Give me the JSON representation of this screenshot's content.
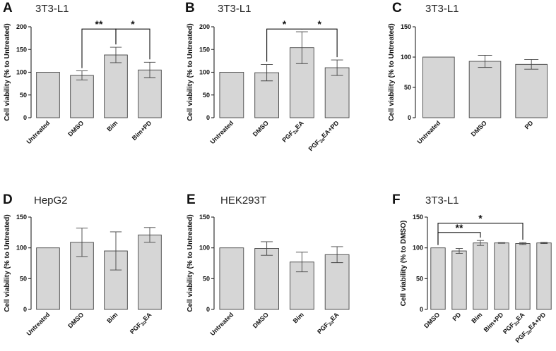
{
  "colors": {
    "bar_fill": "#d6d6d6",
    "bar_stroke": "#444444",
    "axis": "#222222"
  },
  "chart_data": [
    {
      "panel": "A",
      "type": "bar",
      "title": "3T3-L1",
      "ylabel": "Cell viability (% to Untreated)",
      "ylim": [
        0,
        200
      ],
      "yticks": [
        "0",
        "50",
        "100",
        "150",
        "200"
      ],
      "categories": [
        {
          "text": "Untreated"
        },
        {
          "text": "DMSO"
        },
        {
          "text": "Bim"
        },
        {
          "text": "Bim+PD"
        }
      ],
      "values": [
        100,
        93,
        138,
        105
      ],
      "errors": [
        0,
        10,
        17,
        17
      ],
      "annotations": [
        {
          "from": 1,
          "to": 2,
          "label": "**",
          "y": 195
        },
        {
          "from": 2,
          "to": 3,
          "label": "*",
          "y": 195
        }
      ]
    },
    {
      "panel": "B",
      "type": "bar",
      "title": "3T3-L1",
      "ylabel": "Cell viability (% to Untreated)",
      "ylim": [
        0,
        200
      ],
      "yticks": [
        "0",
        "50",
        "100",
        "150",
        "200"
      ],
      "categories": [
        {
          "text": "Untreated"
        },
        {
          "text": "DMSO"
        },
        {
          "text": "PGF",
          "sub": "2α",
          "tail": "EA"
        },
        {
          "text": "PGF",
          "sub": "2α",
          "tail": "EA+PD"
        }
      ],
      "values": [
        100,
        99,
        154,
        110
      ],
      "errors": [
        0,
        18,
        35,
        17
      ],
      "annotations": [
        {
          "from": 1,
          "to": 2,
          "label": "*",
          "y": 195
        },
        {
          "from": 2,
          "to": 3,
          "label": "*",
          "y": 195
        }
      ]
    },
    {
      "panel": "C",
      "type": "bar",
      "title": "3T3-L1",
      "ylabel": "Cell viability (% to Untreated)",
      "ylim": [
        0,
        150
      ],
      "yticks": [
        "0",
        "50",
        "100",
        "150"
      ],
      "categories": [
        {
          "text": "Untreated"
        },
        {
          "text": "DMSO"
        },
        {
          "text": "PD"
        }
      ],
      "values": [
        100,
        93,
        88
      ],
      "errors": [
        0,
        10,
        8
      ],
      "annotations": []
    },
    {
      "panel": "D",
      "type": "bar",
      "title": "HepG2",
      "ylabel": "Cell viability (% to Untreated)",
      "ylim": [
        0,
        150
      ],
      "yticks": [
        "0",
        "50",
        "100",
        "150"
      ],
      "categories": [
        {
          "text": "Untreated"
        },
        {
          "text": "DMSO"
        },
        {
          "text": "Bim"
        },
        {
          "text": "PGF",
          "sub": "2α",
          "tail": "EA"
        }
      ],
      "values": [
        100,
        109,
        95,
        121
      ],
      "errors": [
        0,
        23,
        31,
        12
      ],
      "annotations": []
    },
    {
      "panel": "E",
      "type": "bar",
      "title": "HEK293T",
      "ylabel": "Cell viability (% to Untreated)",
      "ylim": [
        0,
        150
      ],
      "yticks": [
        "0",
        "50",
        "100",
        "150"
      ],
      "categories": [
        {
          "text": "Untreated"
        },
        {
          "text": "DMSO"
        },
        {
          "text": "Bim"
        },
        {
          "text": "PGF",
          "sub": "2α",
          "tail": "EA"
        }
      ],
      "values": [
        100,
        99,
        77,
        89
      ],
      "errors": [
        0,
        11,
        16,
        13
      ],
      "annotations": []
    },
    {
      "panel": "F",
      "type": "bar",
      "title": "3T3-L1",
      "ylabel": "Cell viability (% to DMSO)",
      "ylim": [
        0,
        150
      ],
      "yticks": [
        "0",
        "50",
        "100",
        "150"
      ],
      "categories": [
        {
          "text": "DMSO"
        },
        {
          "text": "PD"
        },
        {
          "text": "Bim"
        },
        {
          "text": "Bim+PD"
        },
        {
          "text": "PGF",
          "sub": "2α",
          "tail": "EA"
        },
        {
          "text": "PGF",
          "sub": "2α",
          "tail": "EA+PD"
        }
      ],
      "values": [
        100,
        95,
        108,
        108,
        107,
        108
      ],
      "errors": [
        0,
        4,
        4,
        0.5,
        1.5,
        1
      ],
      "annotations": [
        {
          "from": 0,
          "to": 2,
          "label": "**",
          "y": 125
        },
        {
          "from": 0,
          "to": 4,
          "label": "*",
          "y": 140
        }
      ]
    }
  ]
}
